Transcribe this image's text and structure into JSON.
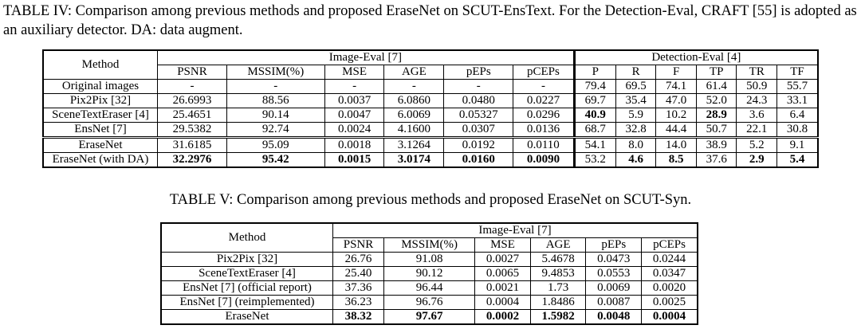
{
  "table4": {
    "caption": "TABLE IV:  Comparison among previous methods and proposed EraseNet on SCUT-EnsText. For the Detection-Eval, CRAFT [55] is adopted as an auxiliary detector. DA: data augment.",
    "method_header": "Method",
    "group_image_eval": "Image-Eval [7]",
    "group_detection_eval": "Detection-Eval [4]",
    "image_cols": [
      "PSNR",
      "MSSIM(%)",
      "MSE",
      "AGE",
      "pEPs",
      "pCEPs"
    ],
    "det_cols": [
      "P",
      "R",
      "F",
      "TP",
      "TR",
      "TF"
    ],
    "rows": [
      {
        "method": "Original images",
        "img": [
          "-",
          "-",
          "-",
          "-",
          "-",
          "-"
        ],
        "det": [
          "79.4",
          "69.5",
          "74.1",
          "61.4",
          "50.9",
          "55.7"
        ]
      },
      {
        "method": "Pix2Pix [32]",
        "img": [
          "26.6993",
          "88.56",
          "0.0037",
          "6.0860",
          "0.0480",
          "0.0227"
        ],
        "det": [
          "69.7",
          "35.4",
          "47.0",
          "52.0",
          "24.3",
          "33.1"
        ]
      },
      {
        "method": "SceneTextEraser [4]",
        "img": [
          "25.4651",
          "90.14",
          "0.0047",
          "6.0069",
          "0.05327",
          "0.0296"
        ],
        "det": [
          "40.9",
          "5.9",
          "10.2",
          "28.9",
          "3.6",
          "6.4"
        ]
      },
      {
        "method": "EnsNet [7]",
        "img": [
          "29.5382",
          "92.74",
          "0.0024",
          "4.1600",
          "0.0307",
          "0.0136"
        ],
        "det": [
          "68.7",
          "32.8",
          "44.4",
          "50.7",
          "22.1",
          "30.8"
        ]
      },
      {
        "method": "EraseNet",
        "img": [
          "31.6185",
          "95.09",
          "0.0018",
          "3.1264",
          "0.0192",
          "0.0110"
        ],
        "det": [
          "54.1",
          "8.0",
          "14.0",
          "38.9",
          "5.2",
          "9.1"
        ]
      },
      {
        "method": "EraseNet (with DA)",
        "img": [
          "32.2976",
          "95.42",
          "0.0015",
          "3.0174",
          "0.0160",
          "0.0090"
        ],
        "det": [
          "53.2",
          "4.6",
          "8.5",
          "37.6",
          "2.9",
          "5.4"
        ]
      }
    ]
  },
  "table5": {
    "caption": "TABLE V:  Comparison among previous methods and proposed EraseNet on SCUT-Syn.",
    "method_header": "Method",
    "group_image_eval": "Image-Eval [7]",
    "image_cols": [
      "PSNR",
      "MSSIM(%)",
      "MSE",
      "AGE",
      "pEPs",
      "pCEPs"
    ],
    "rows": [
      {
        "method": "Pix2Pix [32]",
        "img": [
          "26.76",
          "91.08",
          "0.0027",
          "5.4678",
          "0.0473",
          "0.0244"
        ]
      },
      {
        "method": "SceneTextEraser [4]",
        "img": [
          "25.40",
          "90.12",
          "0.0065",
          "9.4853",
          "0.0553",
          "0.0347"
        ]
      },
      {
        "method": "EnsNet [7] (official report)",
        "img": [
          "37.36",
          "96.44",
          "0.0021",
          "1.73",
          "0.0069",
          "0.0020"
        ]
      },
      {
        "method": "EnsNet [7] (reimplemented)",
        "img": [
          "36.23",
          "96.76",
          "0.0004",
          "1.8486",
          "0.0087",
          "0.0025"
        ]
      },
      {
        "method": "EraseNet",
        "img": [
          "38.32",
          "97.67",
          "0.0002",
          "1.5982",
          "0.0048",
          "0.0004"
        ]
      }
    ]
  }
}
